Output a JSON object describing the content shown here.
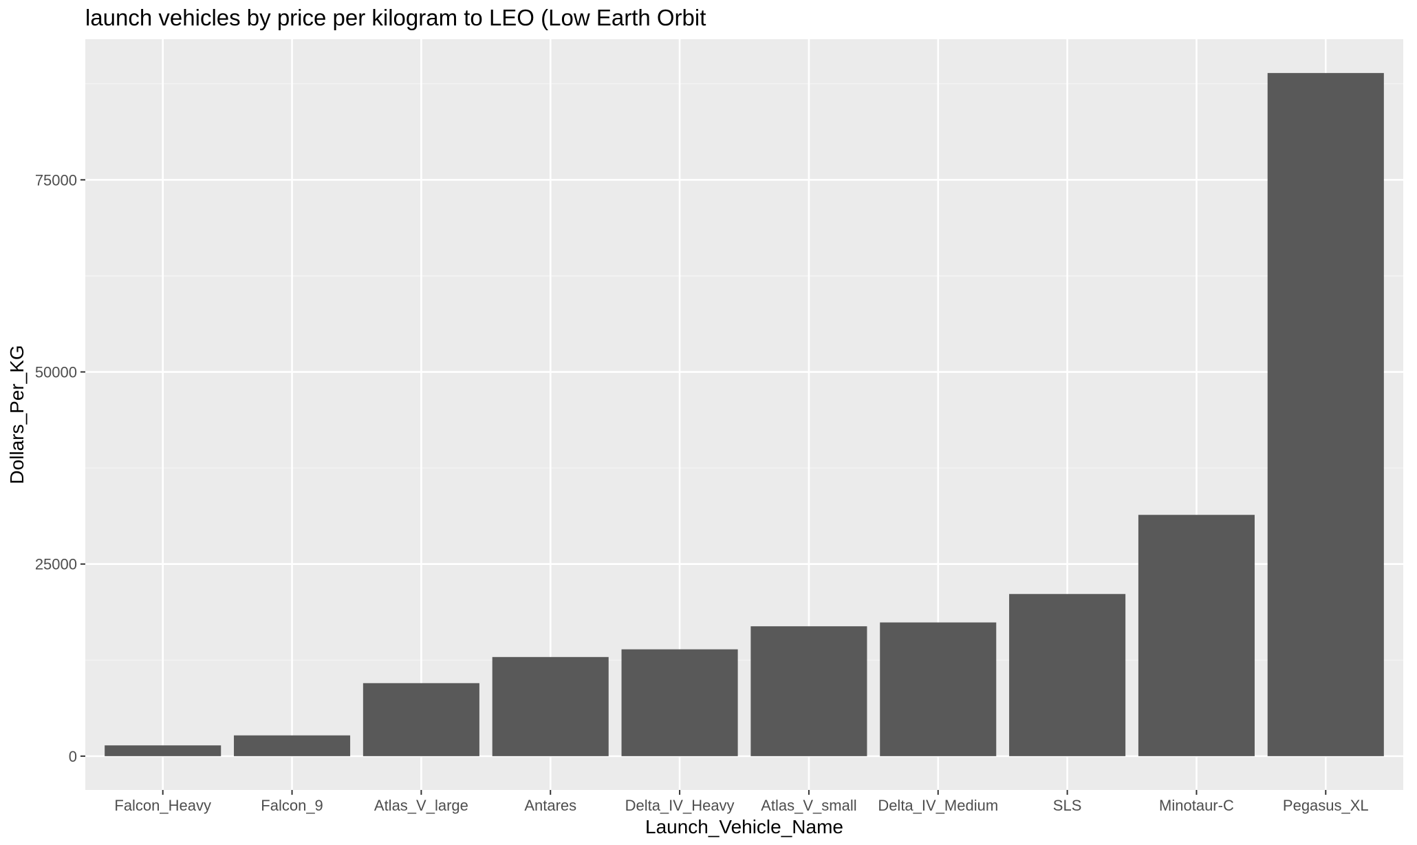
{
  "chart_data": {
    "type": "bar",
    "title": "launch vehicles by price per kilogram to LEO (Low Earth Orbit",
    "xlabel": "Launch_Vehicle_Name",
    "ylabel": "Dollars_Per_KG",
    "categories": [
      "Falcon_Heavy",
      "Falcon_9",
      "Atlas_V_large",
      "Antares",
      "Delta_IV_Heavy",
      "Atlas_V_small",
      "Delta_IV_Medium",
      "SLS",
      "Minotaur-C",
      "Pegasus_XL"
    ],
    "values": [
      1400,
      2700,
      9500,
      12900,
      13900,
      16900,
      17400,
      21100,
      31400,
      88900
    ],
    "ylim": [
      -4400,
      93300
    ],
    "yticks": [
      0,
      25000,
      50000,
      75000
    ],
    "ytick_labels": [
      "0",
      "25000",
      "50000",
      "75000"
    ],
    "grid": true,
    "legend": "none",
    "colors": {
      "bar": "#595959",
      "panel": "#ebebeb",
      "grid_major": "#ffffff",
      "grid_minor": "#f5f5f5",
      "tick_text": "#4d4d4d",
      "text": "#000000"
    }
  }
}
